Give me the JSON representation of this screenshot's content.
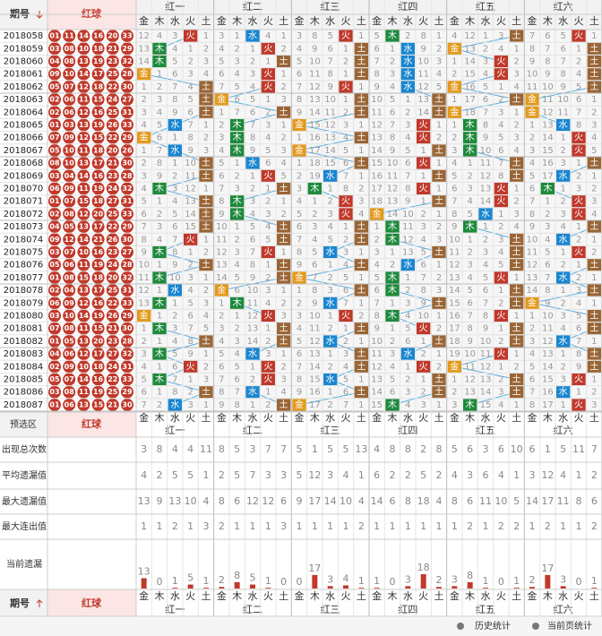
{
  "header": {
    "period": "期号",
    "red": "红球",
    "groups": [
      "红一",
      "红二",
      "红三",
      "红四",
      "红五",
      "红六"
    ],
    "elements": [
      "金",
      "木",
      "水",
      "火",
      "土"
    ]
  },
  "rows": [
    {
      "period": "2018058",
      "balls": [
        "01",
        "11",
        "14",
        "16",
        "20",
        "33"
      ],
      "cells": [
        12,
        4,
        3,
        "火",
        1,
        3,
        1,
        "水",
        4,
        1,
        3,
        8,
        5,
        "火",
        1,
        5,
        "木",
        2,
        8,
        1,
        4,
        12,
        1,
        3,
        "土",
        7,
        6,
        5,
        "火",
        1
      ]
    },
    {
      "period": "2018059",
      "balls": [
        "03",
        "08",
        "10",
        "18",
        "21",
        "29"
      ],
      "cells": [
        13,
        "木",
        4,
        1,
        2,
        4,
        2,
        1,
        "火",
        2,
        4,
        9,
        6,
        1,
        "土",
        6,
        1,
        "水",
        9,
        2,
        "金",
        13,
        2,
        4,
        1,
        8,
        7,
        6,
        1,
        "土"
      ]
    },
    {
      "period": "2018060",
      "balls": [
        "04",
        "08",
        "13",
        "19",
        "23",
        "32"
      ],
      "cells": [
        14,
        "木",
        5,
        2,
        3,
        5,
        3,
        2,
        1,
        "土",
        5,
        10,
        7,
        2,
        "土",
        7,
        2,
        "水",
        10,
        3,
        1,
        14,
        3,
        "火",
        2,
        9,
        8,
        7,
        2,
        "土"
      ]
    },
    {
      "period": "2018061",
      "balls": [
        "09",
        "10",
        "14",
        "17",
        "25",
        "28"
      ],
      "cells": [
        "金",
        1,
        6,
        3,
        4,
        6,
        4,
        3,
        "火",
        1,
        6,
        11,
        8,
        1,
        "土",
        8,
        3,
        "水",
        11,
        4,
        2,
        15,
        4,
        "火",
        3,
        10,
        9,
        8,
        4,
        "土"
      ]
    },
    {
      "period": "2018062",
      "balls": [
        "05",
        "07",
        "12",
        "18",
        "22",
        "30"
      ],
      "cells": [
        1,
        2,
        7,
        4,
        "土",
        7,
        5,
        4,
        "火",
        2,
        7,
        12,
        9,
        "火",
        1,
        9,
        4,
        "水",
        12,
        5,
        "金",
        16,
        5,
        1,
        4,
        11,
        10,
        9,
        5,
        "土"
      ]
    },
    {
      "period": "2018063",
      "balls": [
        "02",
        "06",
        "11",
        "15",
        "24",
        "27"
      ],
      "cells": [
        2,
        3,
        8,
        5,
        "土",
        "金",
        6,
        5,
        1,
        3,
        8,
        13,
        10,
        1,
        "土",
        10,
        5,
        1,
        13,
        "土",
        1,
        17,
        6,
        2,
        "土",
        "金",
        11,
        10,
        6,
        1
      ]
    },
    {
      "period": "2018064",
      "balls": [
        "02",
        "06",
        "12",
        "16",
        "25",
        "31"
      ],
      "cells": [
        3,
        4,
        9,
        6,
        "土",
        1,
        7,
        6,
        2,
        "土",
        9,
        14,
        11,
        2,
        "土",
        11,
        6,
        2,
        14,
        "土",
        "金",
        18,
        7,
        3,
        1,
        "金",
        12,
        11,
        7,
        2
      ]
    },
    {
      "period": "2018065",
      "balls": [
        "01",
        "03",
        "13",
        "19",
        "26",
        "33"
      ],
      "cells": [
        4,
        5,
        "水",
        7,
        1,
        2,
        "木",
        7,
        3,
        1,
        "金",
        15,
        12,
        3,
        1,
        12,
        7,
        3,
        "火",
        1,
        1,
        "木",
        8,
        4,
        2,
        1,
        13,
        "水",
        8,
        3
      ]
    },
    {
      "period": "2018066",
      "balls": [
        "07",
        "09",
        "12",
        "15",
        "22",
        "29"
      ],
      "cells": [
        "金",
        6,
        1,
        8,
        2,
        3,
        "木",
        8,
        4,
        2,
        1,
        16,
        13,
        4,
        "土",
        13,
        8,
        4,
        "火",
        2,
        2,
        "木",
        9,
        5,
        3,
        2,
        14,
        1,
        "火",
        4
      ]
    },
    {
      "period": "2018067",
      "balls": [
        "05",
        "10",
        "11",
        "18",
        "20",
        "26"
      ],
      "cells": [
        1,
        7,
        "水",
        9,
        3,
        4,
        "木",
        9,
        5,
        3,
        "金",
        17,
        14,
        5,
        1,
        14,
        9,
        5,
        1,
        "土",
        3,
        "木",
        10,
        6,
        4,
        3,
        15,
        2,
        "火",
        5
      ]
    },
    {
      "period": "2018068",
      "balls": [
        "08",
        "10",
        "13",
        "17",
        "21",
        "30"
      ],
      "cells": [
        2,
        8,
        1,
        10,
        "土",
        5,
        1,
        "水",
        6,
        4,
        1,
        18,
        15,
        6,
        "土",
        15,
        10,
        6,
        "火",
        1,
        4,
        1,
        11,
        7,
        "土",
        4,
        16,
        3,
        1,
        "土"
      ]
    },
    {
      "period": "2018069",
      "balls": [
        "03",
        "04",
        "14",
        "16",
        "23",
        "28"
      ],
      "cells": [
        3,
        9,
        2,
        11,
        "土",
        6,
        2,
        1,
        "火",
        5,
        2,
        19,
        "水",
        7,
        1,
        16,
        11,
        7,
        1,
        "土",
        5,
        2,
        12,
        8,
        "土",
        5,
        17,
        "水",
        2,
        1
      ]
    },
    {
      "period": "2018070",
      "balls": [
        "06",
        "09",
        "11",
        "19",
        "24",
        "32"
      ],
      "cells": [
        4,
        "木",
        3,
        12,
        1,
        7,
        3,
        2,
        1,
        "土",
        3,
        "木",
        1,
        8,
        2,
        17,
        12,
        8,
        "火",
        1,
        6,
        3,
        13,
        "火",
        1,
        6,
        "木",
        1,
        3,
        2
      ]
    },
    {
      "period": "2018071",
      "balls": [
        "01",
        "07",
        "15",
        "18",
        "27",
        "31"
      ],
      "cells": [
        5,
        1,
        4,
        13,
        "土",
        8,
        "木",
        3,
        2,
        1,
        4,
        1,
        2,
        "火",
        3,
        18,
        13,
        9,
        1,
        "土",
        7,
        4,
        14,
        "火",
        2,
        7,
        1,
        2,
        "火",
        3
      ]
    },
    {
      "period": "2018072",
      "balls": [
        "02",
        "08",
        "12",
        "20",
        "25",
        "33"
      ],
      "cells": [
        6,
        2,
        5,
        14,
        "土",
        9,
        "木",
        4,
        3,
        2,
        5,
        2,
        3,
        "火",
        4,
        "金",
        14,
        10,
        2,
        1,
        8,
        5,
        "水",
        1,
        3,
        8,
        2,
        3,
        "火",
        4
      ]
    },
    {
      "period": "2018073",
      "balls": [
        "04",
        "05",
        "13",
        "17",
        "22",
        "29"
      ],
      "cells": [
        7,
        3,
        6,
        15,
        "土",
        10,
        1,
        5,
        4,
        "土",
        6,
        3,
        4,
        1,
        "土",
        1,
        "木",
        11,
        3,
        2,
        9,
        "木",
        1,
        2,
        4,
        9,
        3,
        4,
        1,
        "土"
      ]
    },
    {
      "period": "2018074",
      "balls": [
        "09",
        "12",
        "14",
        "21",
        "26",
        "30"
      ],
      "cells": [
        8,
        4,
        7,
        "火",
        1,
        11,
        2,
        6,
        5,
        "土",
        7,
        4,
        5,
        2,
        "土",
        2,
        "木",
        12,
        4,
        3,
        10,
        1,
        2,
        3,
        "土",
        10,
        4,
        "水",
        2,
        1
      ]
    },
    {
      "period": "2018075",
      "balls": [
        "03",
        "07",
        "10",
        "16",
        "23",
        "27"
      ],
      "cells": [
        9,
        "木",
        8,
        1,
        2,
        12,
        3,
        7,
        "火",
        1,
        8,
        5,
        "水",
        3,
        1,
        3,
        1,
        13,
        5,
        "土",
        11,
        2,
        3,
        4,
        "土",
        11,
        5,
        1,
        "火",
        2
      ]
    },
    {
      "period": "2018076",
      "balls": [
        "05",
        "06",
        "11",
        "19",
        "24",
        "28"
      ],
      "cells": [
        10,
        1,
        9,
        2,
        "土",
        13,
        4,
        8,
        1,
        "土",
        9,
        6,
        1,
        4,
        "土",
        4,
        2,
        "水",
        6,
        1,
        12,
        3,
        4,
        5,
        "土",
        12,
        6,
        2,
        1,
        "土"
      ]
    },
    {
      "period": "2018077",
      "balls": [
        "01",
        "08",
        "15",
        "18",
        "20",
        "32"
      ],
      "cells": [
        11,
        "木",
        10,
        3,
        1,
        14,
        5,
        9,
        2,
        "土",
        "金",
        7,
        2,
        5,
        1,
        5,
        "木",
        1,
        7,
        2,
        13,
        4,
        5,
        "火",
        1,
        13,
        7,
        "水",
        2,
        1
      ]
    },
    {
      "period": "2018078",
      "balls": [
        "02",
        "04",
        "13",
        "17",
        "25",
        "31"
      ],
      "cells": [
        12,
        1,
        "水",
        4,
        2,
        "金",
        6,
        10,
        3,
        1,
        1,
        8,
        3,
        6,
        "土",
        6,
        "木",
        2,
        8,
        3,
        14,
        5,
        6,
        1,
        "土",
        14,
        8,
        1,
        3,
        "土"
      ]
    },
    {
      "period": "2018079",
      "balls": [
        "06",
        "09",
        "12",
        "16",
        "22",
        "33"
      ],
      "cells": [
        13,
        "木",
        1,
        5,
        3,
        1,
        "木",
        11,
        4,
        2,
        2,
        9,
        "水",
        7,
        1,
        7,
        1,
        3,
        9,
        "土",
        15,
        6,
        7,
        2,
        "土",
        "金",
        9,
        2,
        4,
        1
      ]
    },
    {
      "period": "2018080",
      "balls": [
        "03",
        "10",
        "14",
        "19",
        "26",
        "29"
      ],
      "cells": [
        "金",
        1,
        2,
        6,
        4,
        2,
        1,
        12,
        "火",
        3,
        3,
        10,
        1,
        "火",
        2,
        8,
        "木",
        4,
        10,
        1,
        16,
        7,
        8,
        "火",
        1,
        1,
        10,
        3,
        5,
        "土"
      ]
    },
    {
      "period": "2018081",
      "balls": [
        "07",
        "08",
        "11",
        "15",
        "21",
        "30"
      ],
      "cells": [
        1,
        "木",
        3,
        7,
        5,
        3,
        2,
        13,
        1,
        "土",
        4,
        11,
        2,
        1,
        "土",
        9,
        1,
        5,
        "火",
        2,
        17,
        8,
        9,
        1,
        "土",
        2,
        11,
        4,
        6,
        "土"
      ]
    },
    {
      "period": "2018082",
      "balls": [
        "01",
        "05",
        "13",
        "20",
        "23",
        "28"
      ],
      "cells": [
        2,
        1,
        4,
        8,
        "土",
        4,
        3,
        14,
        2,
        "土",
        5,
        12,
        "水",
        2,
        1,
        10,
        2,
        6,
        1,
        "土",
        18,
        9,
        10,
        2,
        "土",
        3,
        12,
        "水",
        7,
        1
      ]
    },
    {
      "period": "2018083",
      "balls": [
        "04",
        "06",
        "12",
        "17",
        "27",
        "32"
      ],
      "cells": [
        3,
        "木",
        5,
        9,
        1,
        5,
        4,
        "水",
        3,
        1,
        6,
        13,
        1,
        3,
        "土",
        11,
        3,
        "水",
        2,
        1,
        19,
        10,
        11,
        "火",
        1,
        4,
        13,
        1,
        8,
        "土"
      ]
    },
    {
      "period": "2018084",
      "balls": [
        "02",
        "09",
        "10",
        "18",
        "24",
        "31"
      ],
      "cells": [
        4,
        1,
        6,
        "火",
        2,
        6,
        5,
        1,
        "火",
        2,
        7,
        14,
        2,
        4,
        "土",
        12,
        4,
        1,
        "火",
        2,
        "金",
        11,
        12,
        1,
        2,
        5,
        14,
        2,
        9,
        "土"
      ]
    },
    {
      "period": "2018085",
      "balls": [
        "05",
        "07",
        "14",
        "16",
        "22",
        "33"
      ],
      "cells": [
        5,
        "木",
        7,
        1,
        3,
        7,
        6,
        2,
        "火",
        3,
        8,
        15,
        "水",
        5,
        1,
        13,
        5,
        2,
        1,
        "土",
        1,
        12,
        13,
        2,
        "土",
        6,
        15,
        3,
        "火",
        1
      ]
    },
    {
      "period": "2018086",
      "balls": [
        "03",
        "08",
        "11",
        "19",
        "25",
        "29"
      ],
      "cells": [
        6,
        1,
        8,
        2,
        "土",
        8,
        7,
        "水",
        1,
        4,
        9,
        16,
        1,
        6,
        "土",
        14,
        6,
        3,
        2,
        "土",
        2,
        13,
        14,
        3,
        "土",
        7,
        16,
        "水",
        1,
        2
      ]
    },
    {
      "period": "2018087",
      "balls": [
        "01",
        "06",
        "13",
        "15",
        "21",
        "30"
      ],
      "cells": [
        7,
        2,
        "水",
        3,
        1,
        9,
        8,
        1,
        2,
        "土",
        "金",
        17,
        2,
        7,
        1,
        15,
        "木",
        4,
        3,
        1,
        3,
        "木",
        15,
        4,
        1,
        8,
        17,
        1,
        "火",
        3
      ]
    }
  ],
  "preselect": {
    "label": "预选区",
    "red": "红球"
  },
  "stats": [
    {
      "label": "出现总次数",
      "values": [
        3,
        8,
        4,
        4,
        11,
        8,
        5,
        3,
        7,
        7,
        5,
        1,
        5,
        5,
        13,
        4,
        8,
        8,
        2,
        8,
        5,
        6,
        3,
        6,
        10,
        6,
        1,
        5,
        11,
        7
      ]
    },
    {
      "label": "平均遗漏值",
      "values": [
        4,
        2,
        5,
        5,
        1,
        2,
        5,
        7,
        3,
        3,
        5,
        12,
        3,
        4,
        1,
        6,
        2,
        2,
        5,
        2,
        4,
        3,
        6,
        4,
        1,
        3,
        12,
        4,
        1,
        2
      ]
    },
    {
      "label": "最大遗漏值",
      "values": [
        13,
        9,
        13,
        10,
        4,
        8,
        6,
        12,
        12,
        6,
        9,
        17,
        14,
        10,
        4,
        14,
        6,
        8,
        18,
        4,
        8,
        6,
        11,
        10,
        5,
        14,
        17,
        11,
        8,
        6
      ]
    },
    {
      "label": "最大连出值",
      "values": [
        1,
        1,
        2,
        1,
        3,
        2,
        1,
        1,
        1,
        3,
        1,
        1,
        1,
        1,
        2,
        1,
        1,
        1,
        1,
        1,
        1,
        2,
        1,
        2,
        2,
        1,
        2,
        1,
        1,
        2
      ]
    }
  ],
  "current": {
    "label": "当前遗漏",
    "values": [
      13,
      0,
      1,
      5,
      1,
      2,
      8,
      5,
      1,
      0,
      0,
      17,
      3,
      4,
      1,
      1,
      0,
      3,
      18,
      2,
      3,
      8,
      1,
      0,
      1,
      2,
      17,
      3,
      0,
      1
    ]
  },
  "footer": {
    "period": "期号",
    "red": "红球"
  },
  "buttons": [
    "历史统计",
    "当前页统计"
  ]
}
